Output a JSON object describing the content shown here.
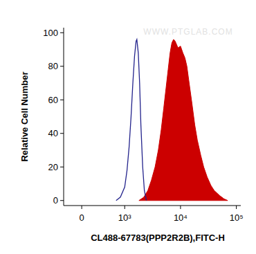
{
  "chart_data": {
    "type": "line",
    "x_label": "CL488-67783(PPP2R2B),FITC-H",
    "y_label": "Relative Cell Number",
    "annotations": [
      "WWW.PTGLAB.COM"
    ],
    "log": "x",
    "xlim": [
      -420,
      120000
    ],
    "xticks": [
      0,
      {
        "value": 1000,
        "label": "10³"
      },
      {
        "value": 10000,
        "label": "10⁴"
      },
      {
        "value": 100000,
        "label": "10⁵"
      }
    ],
    "ylim": [
      -3,
      103
    ],
    "yticks": [
      0,
      20,
      40,
      60,
      80,
      100
    ],
    "grid": false,
    "series": [
      {
        "type": "line",
        "color": "#23238c",
        "x": [
          800,
          900,
          1000,
          1100,
          1200,
          1300,
          1400,
          1500,
          1600,
          1650,
          1750,
          1850,
          1950,
          2100,
          2250,
          2450
        ],
        "values": [
          0,
          2,
          8,
          18,
          32,
          50,
          70,
          86,
          95,
          96,
          88,
          70,
          45,
          20,
          6,
          0
        ]
      },
      {
        "type": "area",
        "color": "#cc0000",
        "x": [
          1800,
          2200,
          2600,
          3000,
          3500,
          4000,
          4500,
          5000,
          5500,
          6000,
          6500,
          7000,
          7500,
          8000,
          9000,
          10000,
          11000,
          12000,
          13000,
          14000,
          16000,
          18000,
          20000,
          23000,
          26000,
          30000,
          35000,
          40000,
          50000,
          60000,
          70000
        ],
        "values": [
          0,
          2,
          6,
          12,
          20,
          30,
          42,
          55,
          67,
          78,
          88,
          94,
          96,
          95,
          91,
          92,
          88,
          85,
          80,
          72,
          58,
          45,
          36,
          27,
          20,
          14,
          9,
          6,
          3,
          1,
          0
        ]
      }
    ]
  }
}
